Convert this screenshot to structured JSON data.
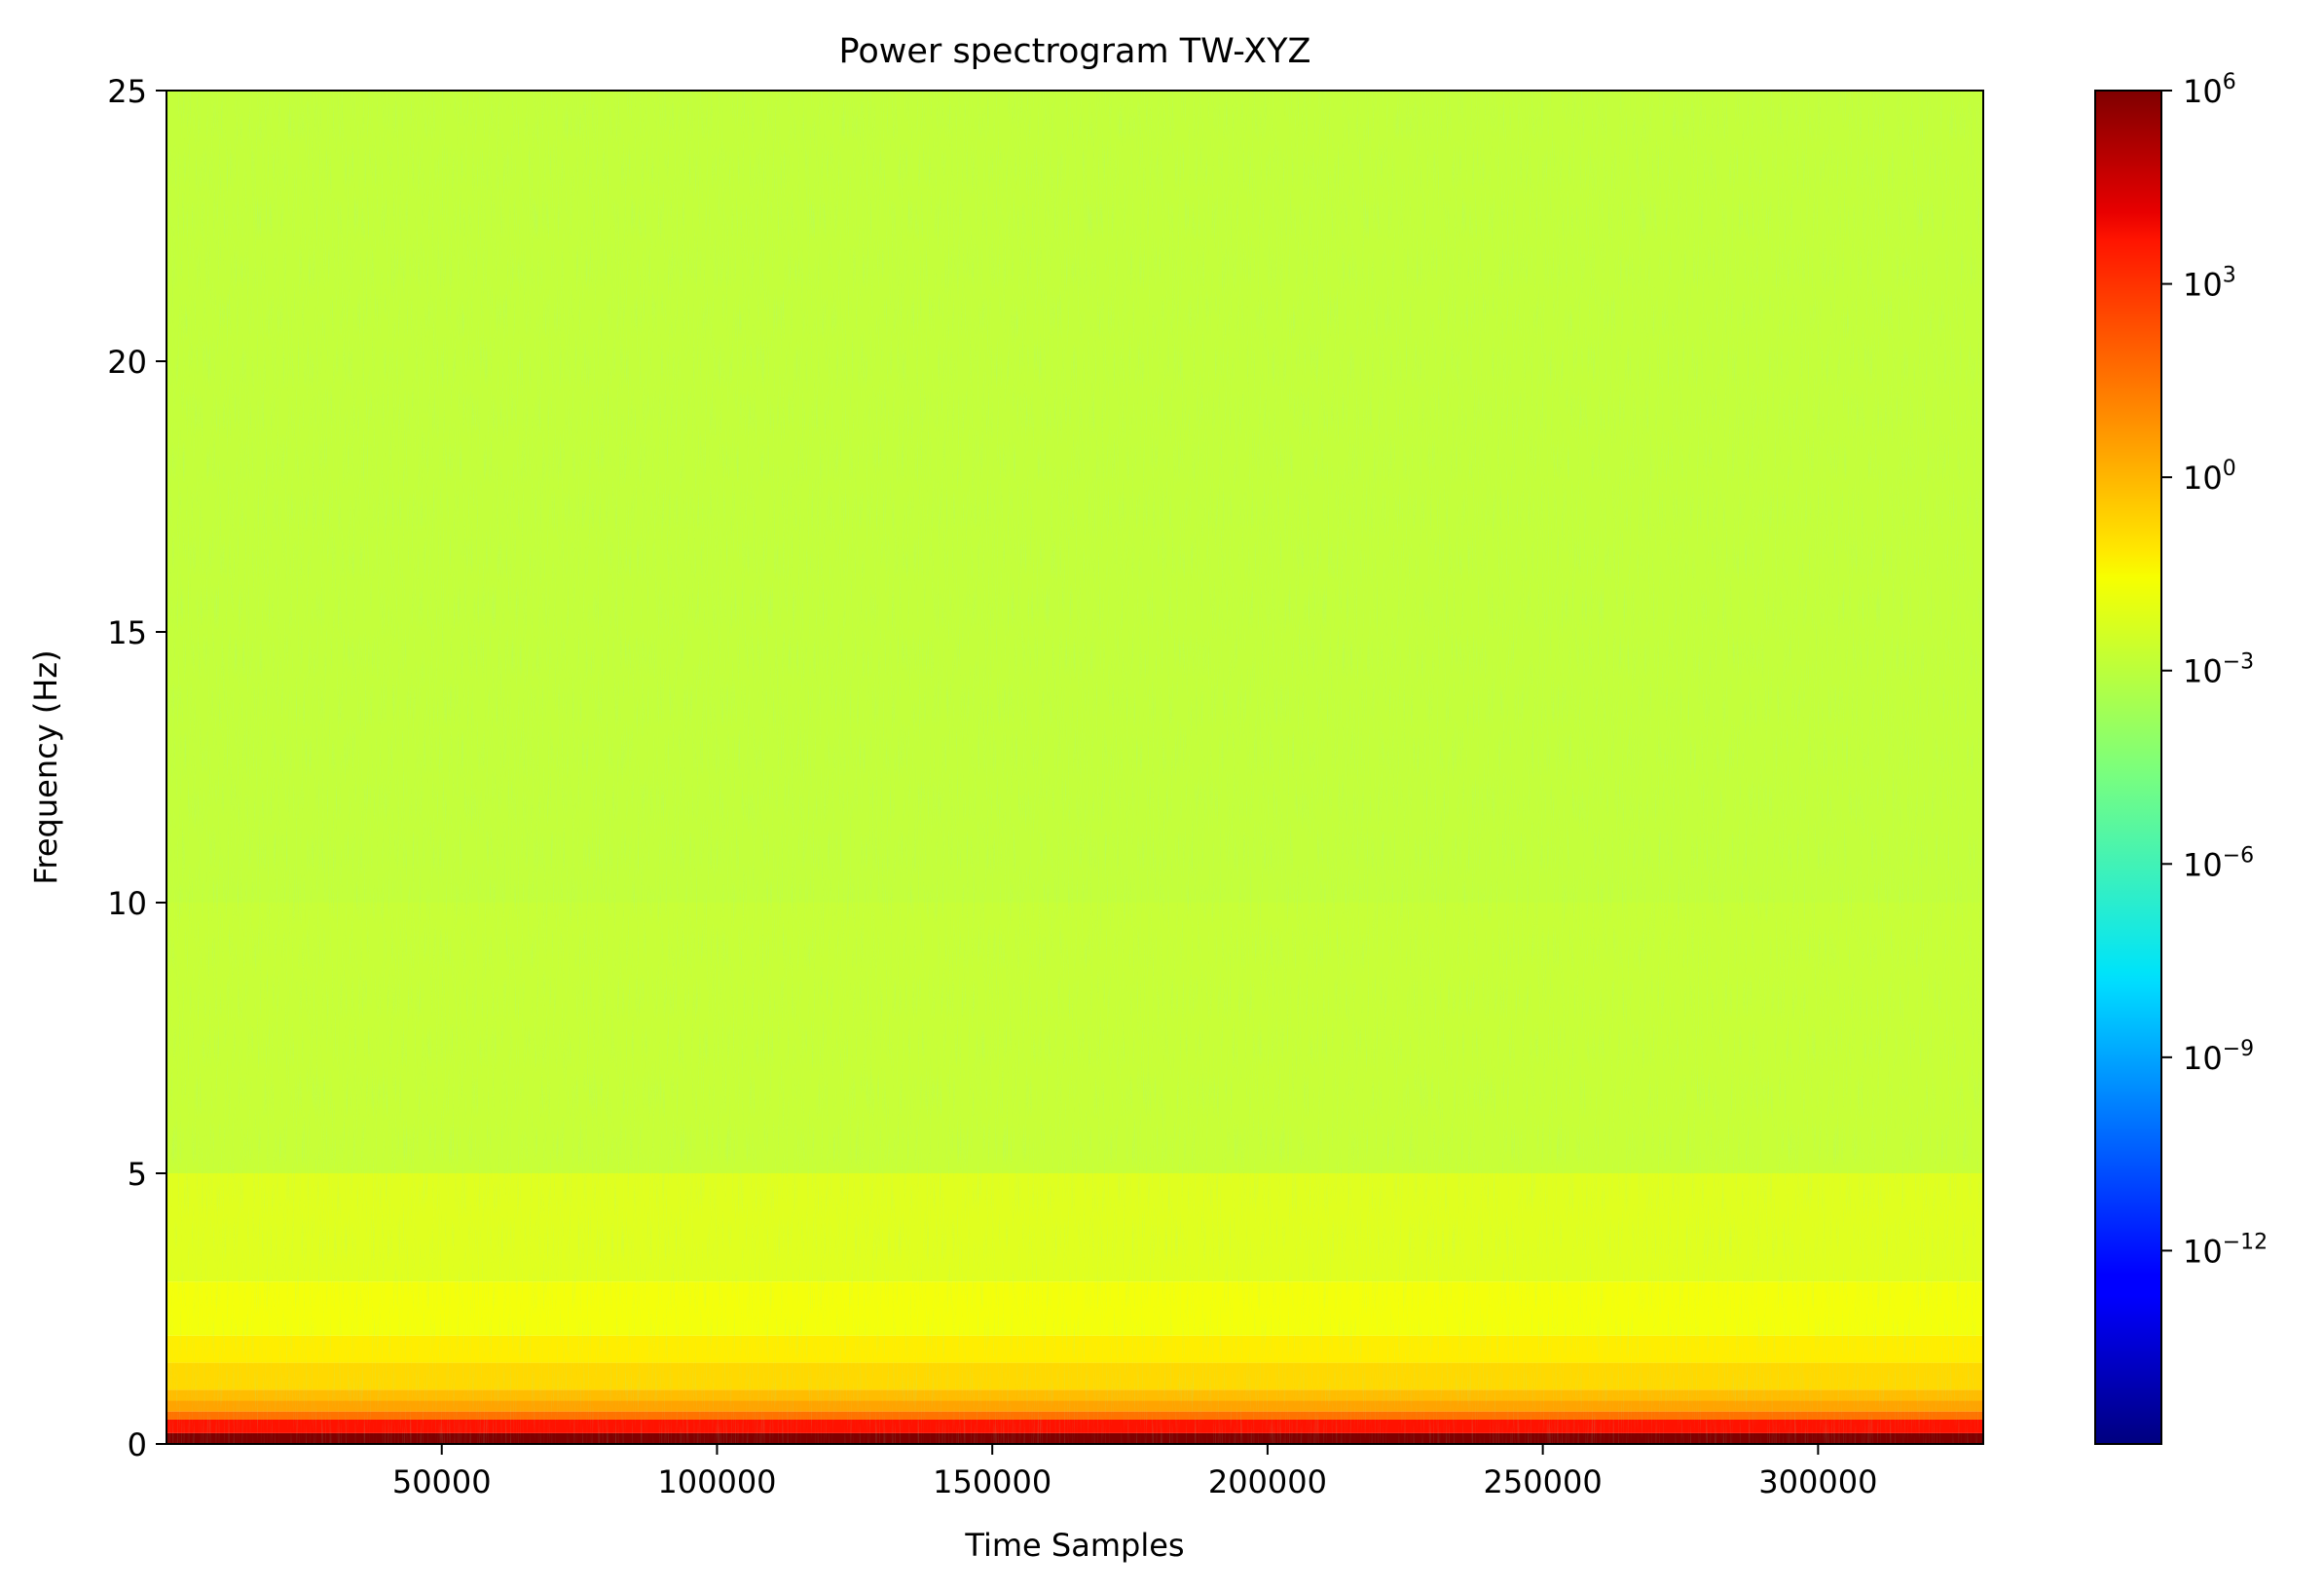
{
  "chart_data": {
    "type": "heatmap",
    "title": "Power spectrogram TW-XYZ",
    "xlabel": "Time Samples",
    "ylabel": "Frequency (Hz)",
    "xlim": [
      0,
      330000
    ],
    "ylim": [
      0,
      25
    ],
    "x_ticks": [
      50000,
      100000,
      150000,
      200000,
      250000,
      300000
    ],
    "x_tick_labels": [
      "50000",
      "100000",
      "150000",
      "200000",
      "250000",
      "300000"
    ],
    "y_ticks": [
      0,
      5,
      10,
      15,
      20,
      25
    ],
    "y_tick_labels": [
      "0",
      "5",
      "10",
      "15",
      "20",
      "25"
    ],
    "colormap": "jet",
    "colorbar": {
      "scale": "log",
      "range": [
        1e-15,
        1000000.0
      ],
      "ticks": [
        1000000.0,
        1000.0,
        1.0,
        0.001,
        1e-06,
        1e-09,
        1e-12
      ],
      "tick_labels": [
        {
          "base": "10",
          "exp": "6"
        },
        {
          "base": "10",
          "exp": "3"
        },
        {
          "base": "10",
          "exp": "0"
        },
        {
          "base": "10",
          "exp": "−3"
        },
        {
          "base": "10",
          "exp": "−6"
        },
        {
          "base": "10",
          "exp": "−9"
        },
        {
          "base": "10",
          "exp": "−12"
        }
      ]
    },
    "frequency_profile": [
      {
        "freq": 0.2,
        "power": 1000000.0
      },
      {
        "freq": 0.45,
        "power": 1000.0
      },
      {
        "freq": 0.6,
        "power": 10.0
      },
      {
        "freq": 0.8,
        "power": 1.0
      },
      {
        "freq": 1.0,
        "power": 0.3
      },
      {
        "freq": 1.5,
        "power": 0.08
      },
      {
        "freq": 2.0,
        "power": 0.03
      },
      {
        "freq": 3.0,
        "power": 0.008
      },
      {
        "freq": 5.0,
        "power": 0.003
      },
      {
        "freq": 10.0,
        "power": 0.001
      },
      {
        "freq": 25.0,
        "power": 0.0008
      }
    ],
    "grid": false,
    "legend": "none"
  }
}
